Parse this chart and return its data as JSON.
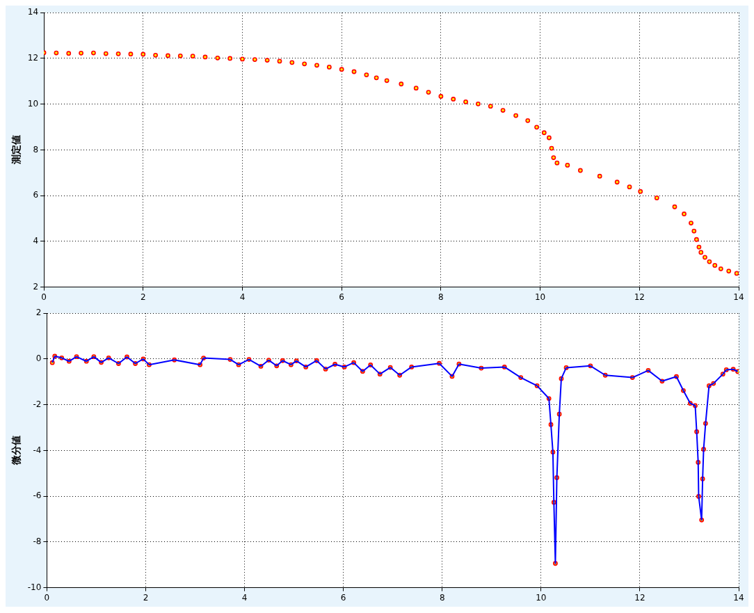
{
  "chart_data": [
    {
      "type": "scatter",
      "ylabel": "測定値",
      "xlim": [
        0,
        14
      ],
      "xticks": [
        0,
        2,
        4,
        6,
        8,
        10,
        12,
        14
      ],
      "ylim": [
        2,
        14
      ],
      "yticks": [
        2,
        4,
        6,
        8,
        10,
        12,
        14
      ],
      "grid": true,
      "legend": false,
      "marker": "circle",
      "x": [
        0,
        0.25,
        0.5,
        0.75,
        1,
        1.25,
        1.5,
        1.75,
        2,
        2.25,
        2.5,
        2.75,
        3,
        3.25,
        3.5,
        3.75,
        4,
        4.25,
        4.5,
        4.75,
        5,
        5.25,
        5.5,
        5.75,
        6,
        6.25,
        6.5,
        6.7,
        6.91,
        7.2,
        7.5,
        7.75,
        8,
        8.25,
        8.5,
        8.75,
        9,
        9.25,
        9.51,
        9.75,
        9.93,
        10.08,
        10.18,
        10.23,
        10.27,
        10.34,
        10.55,
        10.81,
        11.2,
        11.55,
        11.8,
        12.02,
        12.35,
        12.71,
        12.9,
        13.04,
        13.1,
        13.15,
        13.2,
        13.24,
        13.32,
        13.41,
        13.52,
        13.64,
        13.8,
        13.96
      ],
      "series": [
        {
          "color": "#ff0000",
          "values": [
            12.25,
            12.24,
            12.22,
            12.23,
            12.24,
            12.21,
            12.2,
            12.19,
            12.18,
            12.14,
            12.12,
            12.11,
            12.1,
            12.06,
            12.02,
            12.0,
            11.97,
            11.95,
            11.92,
            11.88,
            11.82,
            11.76,
            11.7,
            11.62,
            11.52,
            11.42,
            11.28,
            11.15,
            11.03,
            10.88,
            10.7,
            10.52,
            10.34,
            10.22,
            10.1,
            10.01,
            9.91,
            9.73,
            9.5,
            9.28,
            8.99,
            8.75,
            8.53,
            8.07,
            7.66,
            7.43,
            7.33,
            7.1,
            6.85,
            6.59,
            6.38,
            6.18,
            5.9,
            5.51,
            5.2,
            4.8,
            4.45,
            4.08,
            3.75,
            3.52,
            3.3,
            3.11,
            2.95,
            2.8,
            2.7,
            2.6
          ]
        }
      ]
    },
    {
      "type": "line",
      "ylabel": "微分値",
      "xlim": [
        0,
        14
      ],
      "xticks": [
        0,
        2,
        4,
        6,
        8,
        10,
        12,
        14
      ],
      "ylim": [
        -10,
        2
      ],
      "yticks": [
        -10,
        -8,
        -6,
        -4,
        -2,
        0,
        2
      ],
      "grid": true,
      "legend": false,
      "x": [
        0.11,
        0.16,
        0.3,
        0.45,
        0.6,
        0.8,
        0.95,
        1.1,
        1.25,
        1.45,
        1.62,
        1.79,
        1.95,
        2.07,
        2.58,
        3.1,
        3.17,
        3.71,
        3.88,
        4.09,
        4.33,
        4.49,
        4.65,
        4.77,
        4.94,
        5.05,
        5.24,
        5.46,
        5.64,
        5.83,
        6.02,
        6.21,
        6.39,
        6.55,
        6.74,
        6.95,
        7.14,
        7.38,
        7.94,
        8.2,
        8.34,
        8.79,
        9.26,
        9.59,
        9.92,
        10.16,
        10.2,
        10.24,
        10.26,
        10.29,
        10.32,
        10.37,
        10.41,
        10.51,
        11.0,
        11.3,
        11.85,
        12.17,
        12.45,
        12.74,
        12.88,
        13.02,
        13.12,
        13.15,
        13.18,
        13.19,
        13.25,
        13.27,
        13.29,
        13.33,
        13.4,
        13.49,
        13.68,
        13.75,
        13.89,
        13.98
      ],
      "series": [
        {
          "marker": "none",
          "color": "#0000ff",
          "values": [
            -0.16,
            0.12,
            0.05,
            -0.1,
            0.1,
            -0.1,
            0.1,
            -0.15,
            0.05,
            -0.2,
            0.09,
            -0.2,
            0.0,
            -0.25,
            -0.04,
            -0.25,
            0.04,
            -0.02,
            -0.25,
            -0.02,
            -0.32,
            -0.05,
            -0.3,
            -0.07,
            -0.25,
            -0.08,
            -0.35,
            -0.07,
            -0.44,
            -0.23,
            -0.35,
            -0.16,
            -0.54,
            -0.26,
            -0.66,
            -0.37,
            -0.71,
            -0.35,
            -0.19,
            -0.76,
            -0.22,
            -0.4,
            -0.35,
            -0.81,
            -1.17,
            -1.73,
            -2.87,
            -4.07,
            -6.27,
            -8.94,
            -5.19,
            -2.41,
            -0.86,
            -0.38,
            -0.3,
            -0.71,
            -0.81,
            -0.5,
            -0.97,
            -0.77,
            -1.38,
            -1.94,
            -2.04,
            -3.18,
            -4.52,
            -6.01,
            -7.04,
            -5.24,
            -3.95,
            -2.82,
            -1.17,
            -1.07,
            -0.66,
            -0.47,
            -0.45,
            -0.55
          ]
        },
        {
          "type": "scatter",
          "marker": "circle",
          "color": "#ff0000",
          "values": [
            -0.16,
            0.12,
            0.05,
            -0.1,
            0.1,
            -0.1,
            0.1,
            -0.15,
            0.05,
            -0.2,
            0.09,
            -0.2,
            0.0,
            -0.25,
            -0.04,
            -0.25,
            0.04,
            -0.02,
            -0.25,
            -0.02,
            -0.32,
            -0.05,
            -0.3,
            -0.07,
            -0.25,
            -0.08,
            -0.35,
            -0.07,
            -0.44,
            -0.23,
            -0.35,
            -0.16,
            -0.54,
            -0.26,
            -0.66,
            -0.37,
            -0.71,
            -0.35,
            -0.19,
            -0.76,
            -0.22,
            -0.4,
            -0.35,
            -0.81,
            -1.17,
            -1.73,
            -2.87,
            -4.07,
            -6.27,
            -8.94,
            -5.19,
            -2.41,
            -0.86,
            -0.38,
            -0.3,
            -0.71,
            -0.81,
            -0.5,
            -0.97,
            -0.77,
            -1.38,
            -1.94,
            -2.04,
            -3.18,
            -4.52,
            -6.01,
            -7.04,
            -5.24,
            -3.95,
            -2.82,
            -1.17,
            -1.07,
            -0.66,
            -0.47,
            -0.45,
            -0.55
          ]
        }
      ]
    }
  ]
}
